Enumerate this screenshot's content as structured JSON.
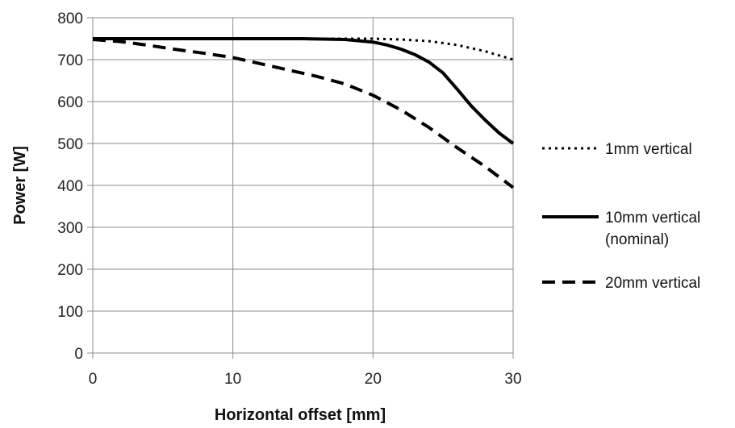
{
  "chart_data": {
    "type": "line",
    "title": "",
    "xlabel": "Horizontal offset [mm]",
    "ylabel": "Power [W]",
    "xlim": [
      0,
      30
    ],
    "ylim": [
      0,
      800
    ],
    "xticks": [
      0,
      10,
      20,
      30
    ],
    "yticks": [
      0,
      100,
      200,
      300,
      400,
      500,
      600,
      700,
      800
    ],
    "grid": true,
    "legend_position": "right",
    "series": [
      {
        "name": "1mm vertical",
        "style": "dotted",
        "color": "#000000",
        "x": [
          0,
          5,
          10,
          15,
          18,
          20,
          22,
          24,
          26,
          28,
          30
        ],
        "y": [
          750,
          750,
          750,
          750,
          750,
          750,
          748,
          744,
          735,
          720,
          700
        ]
      },
      {
        "name": "10mm vertical",
        "name_line2": "(nominal)",
        "style": "solid",
        "color": "#000000",
        "x": [
          0,
          5,
          10,
          15,
          18,
          20,
          21,
          22,
          23,
          24,
          25,
          26,
          27,
          28,
          29,
          30
        ],
        "y": [
          750,
          750,
          750,
          750,
          748,
          742,
          735,
          725,
          712,
          694,
          668,
          630,
          590,
          556,
          525,
          500
        ]
      },
      {
        "name": "20mm vertical",
        "style": "dashed",
        "color": "#000000",
        "x": [
          0,
          2,
          4,
          6,
          8,
          10,
          12,
          14,
          16,
          18,
          20,
          22,
          24,
          26,
          28,
          30
        ],
        "y": [
          748,
          743,
          734,
          724,
          715,
          705,
          690,
          675,
          660,
          642,
          615,
          580,
          538,
          490,
          445,
          395
        ]
      }
    ]
  }
}
